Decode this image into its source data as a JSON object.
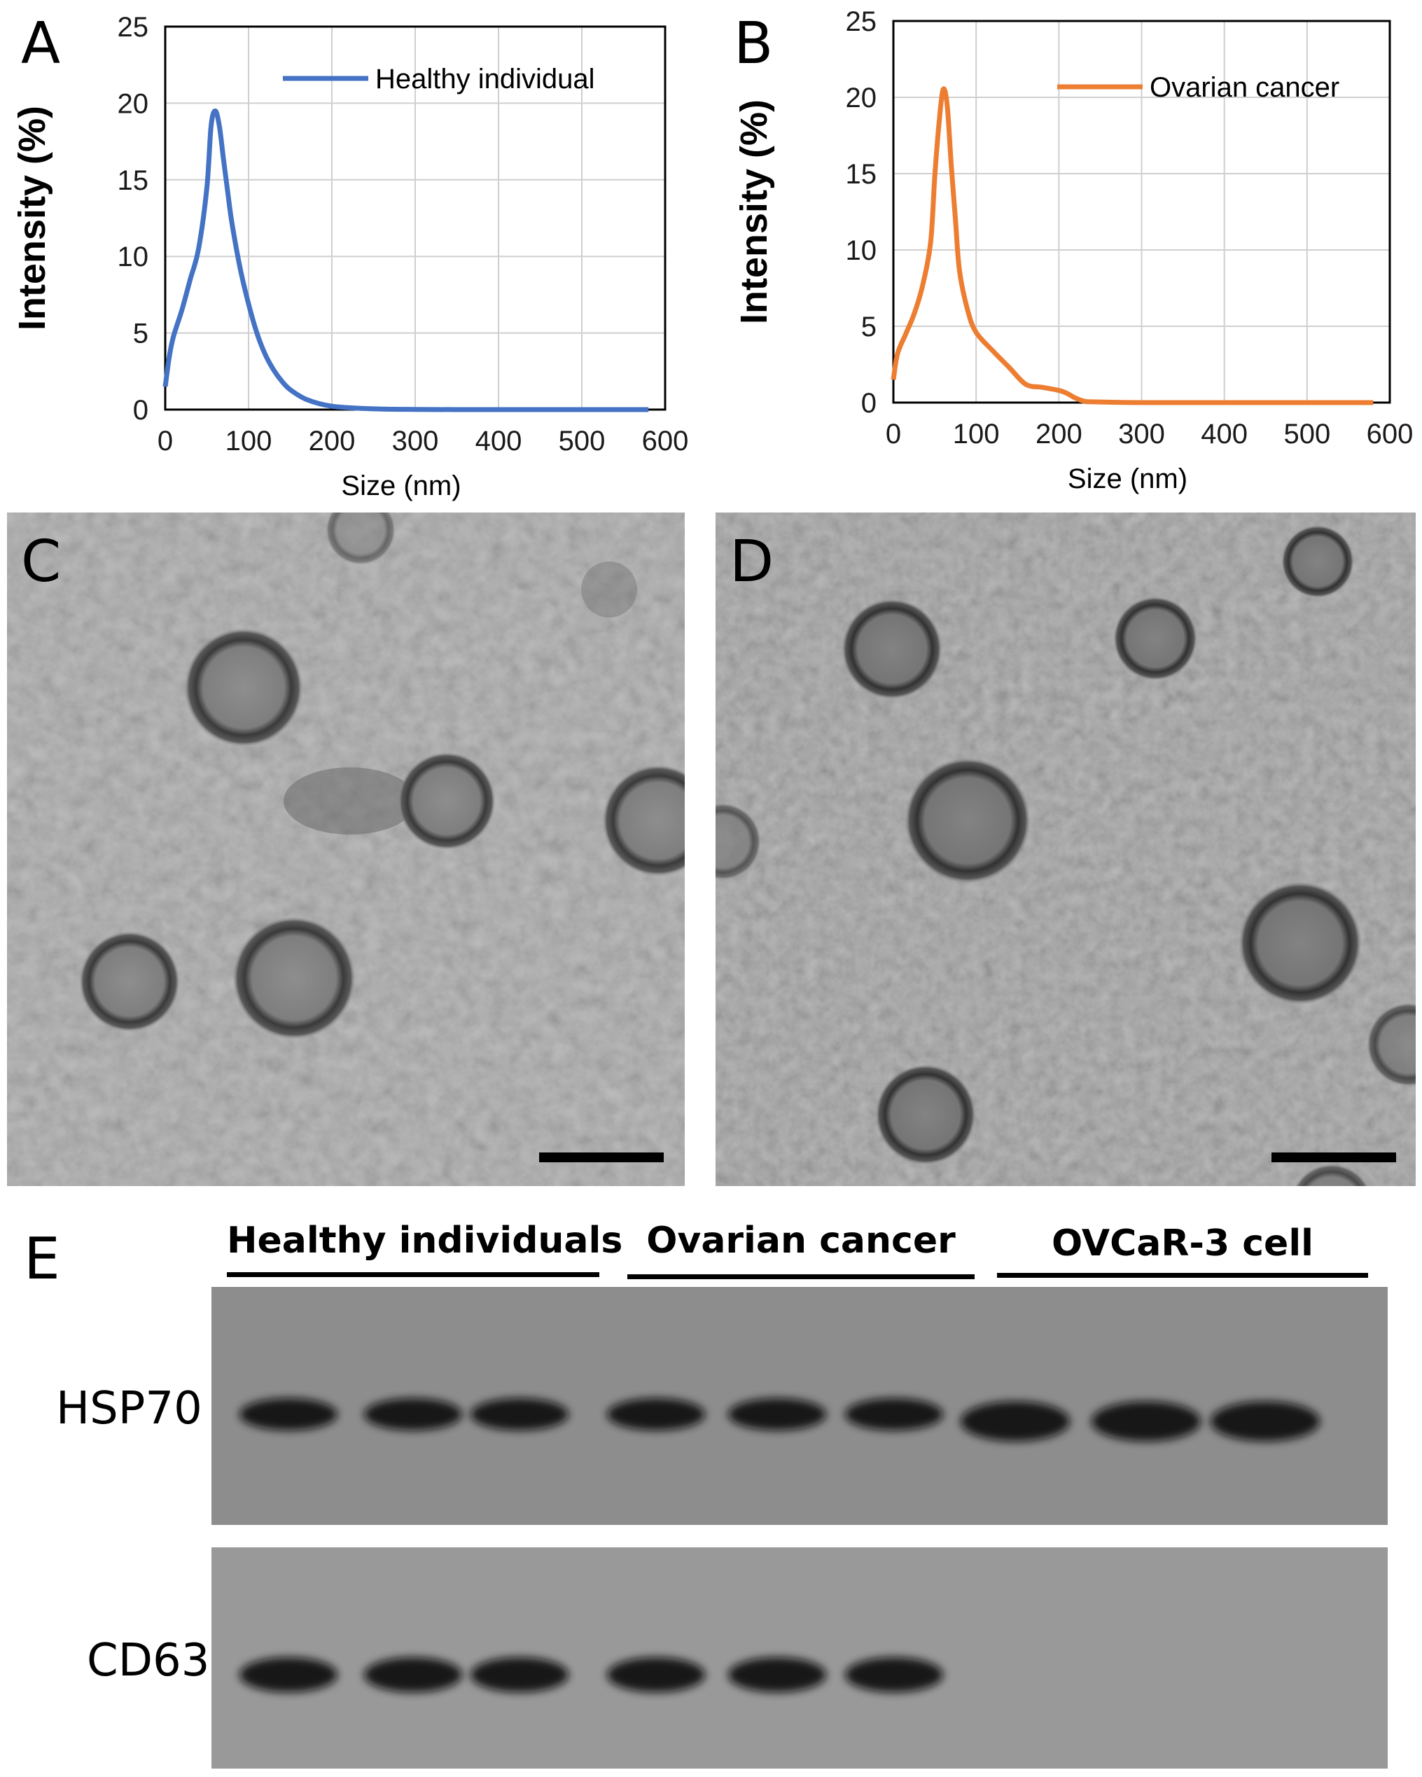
{
  "panels": {
    "A": {
      "letter": "A"
    },
    "B": {
      "letter": "B"
    },
    "C": {
      "letter": "C"
    },
    "D": {
      "letter": "D"
    },
    "E": {
      "letter": "E"
    }
  },
  "chart_data": [
    {
      "panel": "A",
      "type": "line",
      "title": "",
      "xlabel": "Size (nm)",
      "ylabel": "Intensity (%)",
      "xlim": [
        0,
        600
      ],
      "ylim": [
        0,
        25
      ],
      "x_ticks": [
        "0",
        "100",
        "200",
        "300",
        "400",
        "500",
        "600"
      ],
      "y_ticks": [
        "0",
        "5",
        "10",
        "15",
        "20",
        "25"
      ],
      "grid": true,
      "legend": "top-right",
      "series": [
        {
          "name": "Healthy individual",
          "color": "#4472C4",
          "x": [
            0,
            5,
            10,
            20,
            30,
            40,
            50,
            55,
            60,
            65,
            70,
            75,
            80,
            90,
            100,
            110,
            120,
            130,
            140,
            150,
            170,
            200,
            250,
            300,
            350,
            400,
            450,
            500,
            550,
            580
          ],
          "y": [
            1.5,
            3.5,
            4.8,
            6.5,
            8.5,
            10.5,
            14.5,
            18.5,
            19.5,
            18.5,
            16.3,
            14.2,
            12.2,
            9.2,
            6.9,
            5.0,
            3.6,
            2.6,
            1.85,
            1.3,
            0.65,
            0.22,
            0.05,
            0.01,
            0,
            0,
            0,
            0,
            0,
            0
          ]
        }
      ]
    },
    {
      "panel": "B",
      "type": "line",
      "title": "",
      "xlabel": "Size (nm)",
      "ylabel": "Intensity (%)",
      "xlim": [
        0,
        600
      ],
      "ylim": [
        0,
        25
      ],
      "x_ticks": [
        "0",
        "100",
        "200",
        "300",
        "400",
        "500",
        "600"
      ],
      "y_ticks": [
        "0",
        "5",
        "10",
        "15",
        "20",
        "25"
      ],
      "grid": true,
      "legend": "top-right",
      "series": [
        {
          "name": "Ovarian cancer",
          "color": "#ED7D31",
          "x": [
            0,
            5,
            15,
            25,
            35,
            45,
            50,
            55,
            60,
            65,
            70,
            75,
            80,
            90,
            100,
            120,
            140,
            160,
            180,
            200,
            210,
            220,
            230,
            240,
            300,
            400,
            500,
            580
          ],
          "y": [
            1.5,
            3.2,
            4.5,
            5.8,
            7.6,
            10.5,
            14.8,
            18.2,
            20.5,
            19.5,
            15.5,
            12.0,
            8.6,
            6.0,
            4.6,
            3.4,
            2.3,
            1.2,
            1.0,
            0.8,
            0.6,
            0.3,
            0.1,
            0.05,
            0,
            0,
            0,
            0
          ]
        }
      ]
    }
  ],
  "em_images": {
    "C": {
      "description_free": true
    },
    "D": {
      "description_free": true
    }
  },
  "western_blot": {
    "groups": [
      "Healthy individuals",
      "Ovarian cancer",
      "OVCaR-3 cell"
    ],
    "rows": [
      "HSP70",
      "CD63"
    ],
    "lanes_per_group": 3,
    "band_intensity": {
      "HSP70": [
        1,
        1,
        1,
        1,
        1,
        1,
        1,
        1,
        1
      ],
      "CD63": [
        1,
        1,
        1,
        1,
        1,
        1,
        0,
        0,
        0
      ]
    }
  }
}
